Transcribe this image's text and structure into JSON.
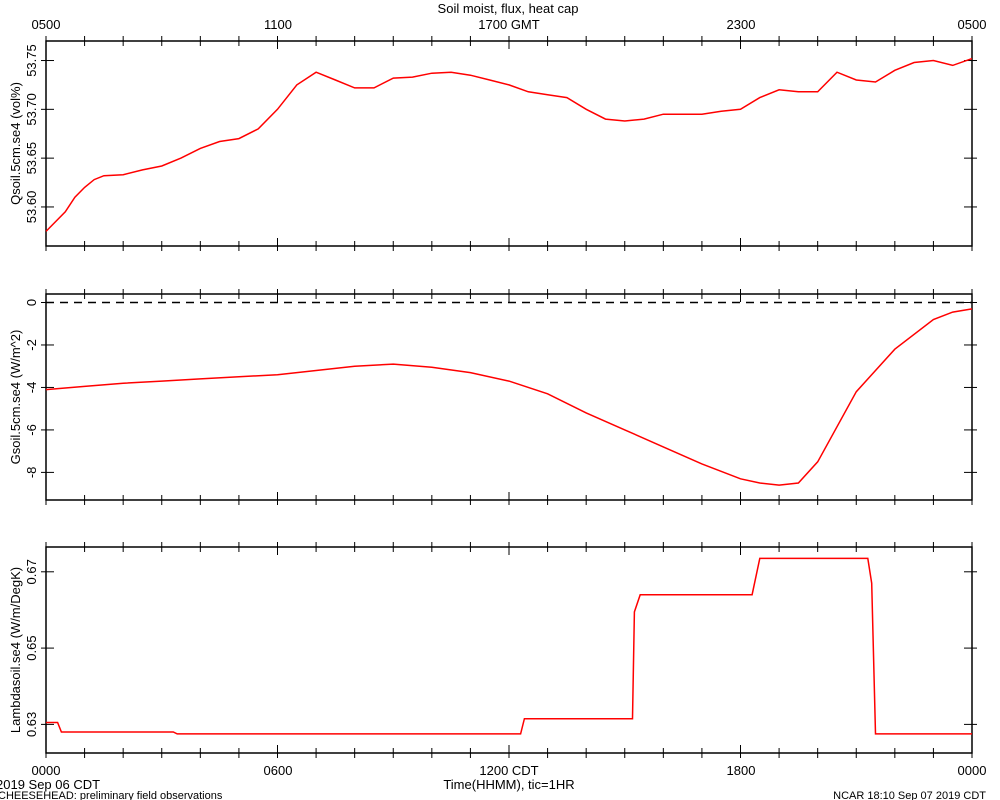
{
  "title": "Soil moist, flux, heat cap",
  "top_axis_ticks": [
    "0500",
    "1100",
    "1700 GMT",
    "2300",
    "0500"
  ],
  "bottom_axis_ticks": [
    "0000",
    "0600",
    "1200 CDT",
    "1800",
    "0000"
  ],
  "xlabel": "Time(HHMM), tic=1HR",
  "date_label": "2019 Sep 06 CDT",
  "footer_left": "CHEESEHEAD: preliminary field observations",
  "footer_right": "NCAR 18:10 Sep 07 2019 CDT",
  "colors": {
    "line": "#ff0000",
    "axis": "#000000",
    "zero_line": "#000000"
  },
  "chart_data": [
    {
      "type": "line",
      "ylabel": "Qsoil.5cm.se4 (vol%)",
      "ylim": [
        53.56,
        53.77
      ],
      "yticks": [
        53.6,
        53.65,
        53.7,
        53.75
      ],
      "ytick_labels": [
        "53.60",
        "53.65",
        "53.70",
        "53.75"
      ],
      "x_hours": [
        0,
        0.25,
        0.5,
        0.75,
        1.0,
        1.25,
        1.5,
        2.0,
        2.5,
        3.0,
        3.5,
        4.0,
        4.5,
        5.0,
        5.5,
        6.0,
        6.5,
        7.0,
        7.5,
        8.0,
        8.5,
        9.0,
        9.5,
        10.0,
        10.5,
        11.0,
        11.5,
        12.0,
        12.5,
        13.0,
        13.5,
        14.0,
        14.5,
        15.0,
        15.5,
        16.0,
        16.5,
        17.0,
        17.5,
        18.0,
        18.5,
        19.0,
        19.5,
        20.0,
        20.5,
        21.0,
        21.5,
        22.0,
        22.5,
        23.0,
        23.5,
        24.0
      ],
      "values": [
        53.575,
        53.585,
        53.595,
        53.61,
        53.62,
        53.628,
        53.632,
        53.633,
        53.638,
        53.642,
        53.65,
        53.66,
        53.667,
        53.67,
        53.68,
        53.7,
        53.725,
        53.738,
        53.73,
        53.722,
        53.722,
        53.732,
        53.733,
        53.737,
        53.738,
        53.735,
        53.73,
        53.725,
        53.718,
        53.715,
        53.712,
        53.7,
        53.69,
        53.688,
        53.69,
        53.695,
        53.695,
        53.695,
        53.698,
        53.7,
        53.712,
        53.72,
        53.718,
        53.718,
        53.738,
        53.73,
        53.728,
        53.74,
        53.748,
        53.75,
        53.745,
        53.752
      ],
      "series": [
        {
          "name": "Qsoil.5cm.se4",
          "color": "#ff0000"
        }
      ]
    },
    {
      "type": "line",
      "ylabel": "Gsoil.5cm.se4 (W/m^2)",
      "ylim": [
        -9.3,
        0.4
      ],
      "yticks": [
        0,
        -2,
        -4,
        -6,
        -8
      ],
      "ytick_labels": [
        "0",
        "-2",
        "-4",
        "-6",
        "-8"
      ],
      "reference_line": 0,
      "x_hours": [
        0,
        1,
        2,
        3,
        4,
        5,
        6,
        7,
        8,
        9,
        10,
        11,
        12,
        13,
        14,
        15,
        16,
        17,
        18,
        18.5,
        19,
        19.5,
        20,
        21,
        22,
        23,
        23.5,
        24
      ],
      "values": [
        -4.1,
        -3.95,
        -3.8,
        -3.7,
        -3.6,
        -3.5,
        -3.4,
        -3.2,
        -3.0,
        -2.9,
        -3.05,
        -3.3,
        -3.7,
        -4.3,
        -5.2,
        -6.0,
        -6.8,
        -7.6,
        -8.3,
        -8.5,
        -8.6,
        -8.5,
        -7.5,
        -4.2,
        -2.2,
        -0.8,
        -0.45,
        -0.3
      ],
      "series": [
        {
          "name": "Gsoil.5cm.se4",
          "color": "#ff0000"
        }
      ]
    },
    {
      "type": "line",
      "ylabel": "Lambdasoil.se4 (W/m/DegK)",
      "ylim": [
        0.6225,
        0.6765
      ],
      "yticks": [
        0.63,
        0.65,
        0.67
      ],
      "ytick_labels": [
        "0.63",
        "0.65",
        "0.67"
      ],
      "x_hours": [
        0,
        0.3,
        0.4,
        3.3,
        3.4,
        12.3,
        12.4,
        15.2,
        15.25,
        15.4,
        18.3,
        18.5,
        21.3,
        21.4,
        21.5,
        24
      ],
      "values": [
        0.6305,
        0.6305,
        0.628,
        0.628,
        0.6275,
        0.6275,
        0.6315,
        0.6315,
        0.6595,
        0.664,
        0.664,
        0.6735,
        0.6735,
        0.667,
        0.6275,
        0.6275
      ],
      "series": [
        {
          "name": "Lambdasoil.se4",
          "color": "#ff0000"
        }
      ]
    }
  ]
}
